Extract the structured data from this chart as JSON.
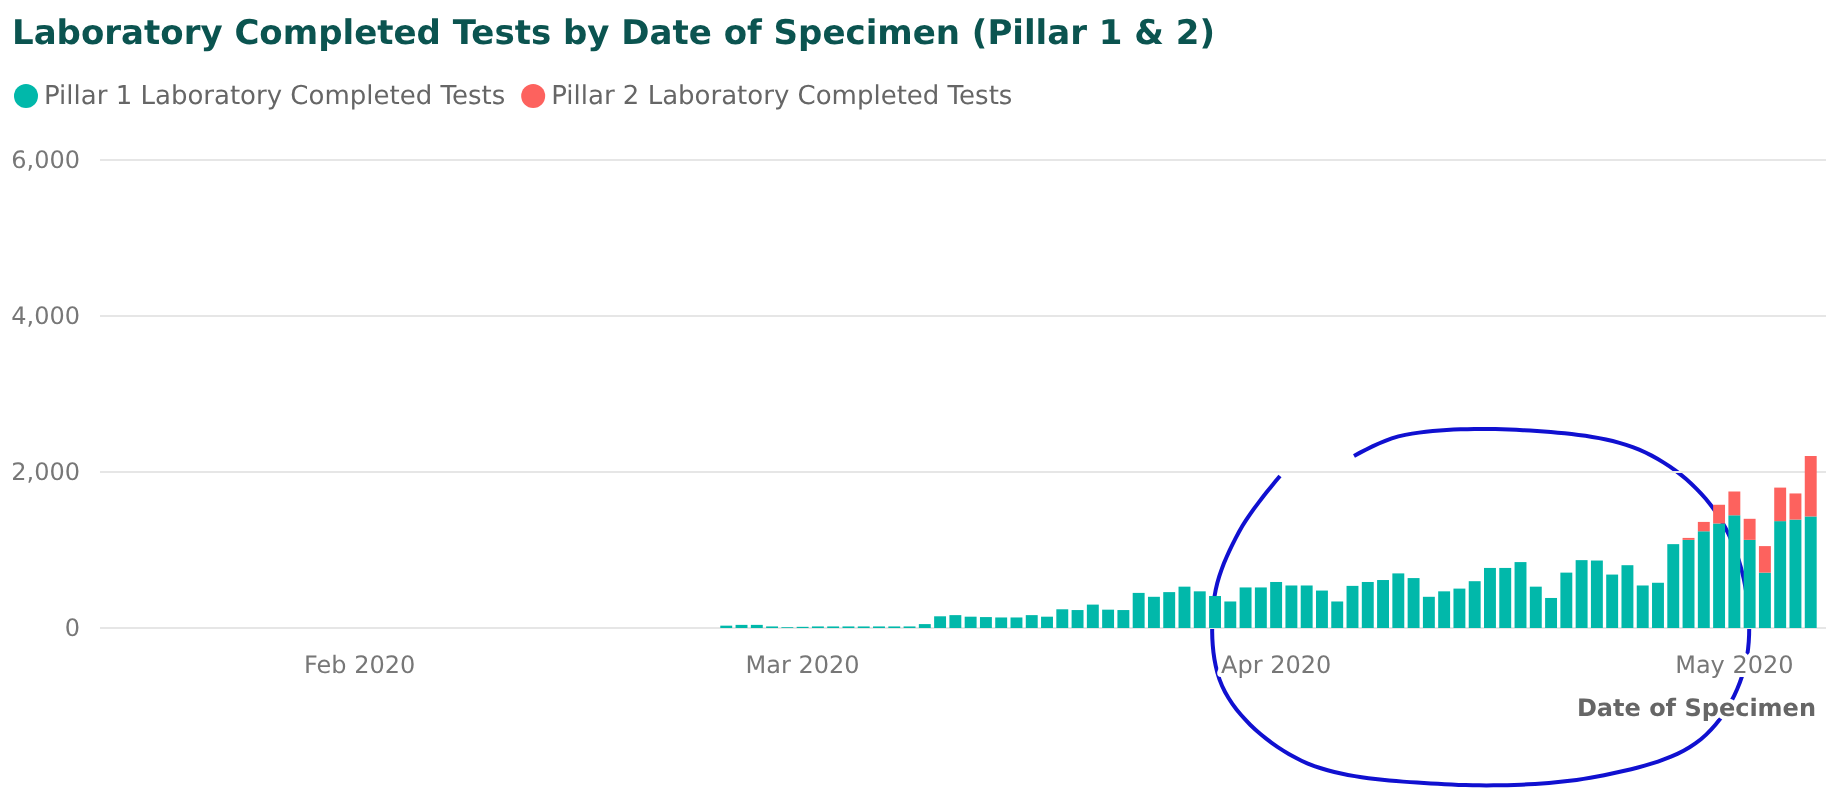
{
  "chart_data": {
    "type": "bar",
    "stacked": true,
    "title": "Laboratory Completed Tests by Date of Specimen (Pillar 1 & 2)",
    "xlabel": "Date of Specimen",
    "x": [
      "2020-02-25",
      "2020-02-26",
      "2020-02-27",
      "2020-02-28",
      "2020-02-29",
      "2020-03-01",
      "2020-03-02",
      "2020-03-03",
      "2020-03-04",
      "2020-03-05",
      "2020-03-06",
      "2020-03-07",
      "2020-03-08",
      "2020-03-09",
      "2020-03-10",
      "2020-03-11",
      "2020-03-12",
      "2020-03-13",
      "2020-03-14",
      "2020-03-15",
      "2020-03-16",
      "2020-03-17",
      "2020-03-18",
      "2020-03-19",
      "2020-03-20",
      "2020-03-21",
      "2020-03-22",
      "2020-03-23",
      "2020-03-24",
      "2020-03-25",
      "2020-03-26",
      "2020-03-27",
      "2020-03-28",
      "2020-03-29",
      "2020-03-30",
      "2020-03-31",
      "2020-04-01",
      "2020-04-02",
      "2020-04-03",
      "2020-04-04",
      "2020-04-05",
      "2020-04-06",
      "2020-04-07",
      "2020-04-08",
      "2020-04-09",
      "2020-04-10",
      "2020-04-11",
      "2020-04-12",
      "2020-04-13",
      "2020-04-14",
      "2020-04-15",
      "2020-04-16",
      "2020-04-17",
      "2020-04-18",
      "2020-04-19",
      "2020-04-20",
      "2020-04-21",
      "2020-04-22",
      "2020-04-23",
      "2020-04-24",
      "2020-04-25",
      "2020-04-26",
      "2020-04-27",
      "2020-04-28",
      "2020-04-29",
      "2020-04-30",
      "2020-05-01",
      "2020-05-02",
      "2020-05-03",
      "2020-05-04",
      "2020-05-05",
      "2020-05-06"
    ],
    "series": [
      {
        "name": "Pillar 1 Laboratory Completed Tests",
        "color": "#01b8aa",
        "values": [
          30,
          40,
          40,
          20,
          10,
          15,
          20,
          20,
          20,
          20,
          20,
          20,
          20,
          50,
          150,
          165,
          145,
          140,
          135,
          135,
          165,
          145,
          240,
          230,
          300,
          235,
          230,
          450,
          400,
          460,
          530,
          470,
          410,
          340,
          520,
          520,
          590,
          545,
          545,
          480,
          340,
          540,
          590,
          615,
          700,
          640,
          400,
          470,
          505,
          600,
          770,
          770,
          845,
          530,
          385,
          710,
          870,
          865,
          685,
          805,
          545,
          580,
          1075,
          1130,
          1240,
          1340,
          1445,
          1130,
          710,
          1370,
          1390,
          1430
        ]
      },
      {
        "name": "Pillar 2 Laboratory Completed Tests",
        "color": "#fd625e",
        "values": [
          null,
          null,
          null,
          null,
          null,
          null,
          null,
          null,
          null,
          null,
          null,
          null,
          null,
          null,
          null,
          null,
          null,
          null,
          null,
          null,
          null,
          null,
          null,
          null,
          null,
          null,
          null,
          null,
          null,
          null,
          null,
          null,
          null,
          null,
          null,
          null,
          null,
          null,
          null,
          null,
          null,
          null,
          null,
          null,
          null,
          null,
          null,
          null,
          null,
          null,
          null,
          null,
          null,
          null,
          null,
          null,
          null,
          null,
          null,
          null,
          null,
          null,
          null,
          25,
          120,
          240,
          305,
          270,
          340,
          430,
          335,
          775
        ]
      }
    ],
    "xlim": [
      "2020-01-15",
      "2020-05-07"
    ],
    "xticks": [
      {
        "value": "2020-02-01",
        "label": "Feb 2020"
      },
      {
        "value": "2020-03-01",
        "label": "Mar 2020"
      },
      {
        "value": "2020-04-01",
        "label": "Apr 2020"
      },
      {
        "value": "2020-05-01",
        "label": "May 2020"
      }
    ],
    "ylim": [
      0,
      6000
    ],
    "yticks": [
      0,
      {
        "value": 2000,
        "label": "2,000"
      },
      {
        "value": 4000,
        "label": "4,000"
      },
      {
        "value": 6000,
        "label": "6,000"
      }
    ],
    "grid": "y",
    "legend": "top left"
  }
}
